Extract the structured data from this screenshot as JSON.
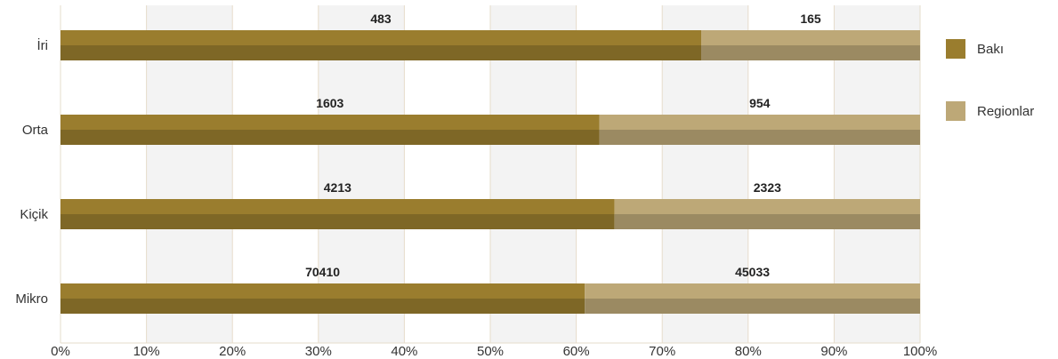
{
  "chart_data": {
    "type": "bar",
    "orientation": "horizontal",
    "stacked": "percent",
    "categories": [
      "İri",
      "Orta",
      "Kiçik",
      "Mikro"
    ],
    "series": [
      {
        "name": "Bakı",
        "values": [
          483,
          1603,
          4213,
          70410
        ],
        "color": "#9a7d2e"
      },
      {
        "name": "Regionlar",
        "values": [
          165,
          954,
          2323,
          45033
        ],
        "color": "#bda877"
      }
    ],
    "x_ticks": [
      "0%",
      "10%",
      "20%",
      "30%",
      "40%",
      "50%",
      "60%",
      "70%",
      "80%",
      "90%",
      "100%"
    ],
    "xlim": [
      0,
      100
    ],
    "grid": "alternating vertical bands",
    "legend_position": "right"
  }
}
